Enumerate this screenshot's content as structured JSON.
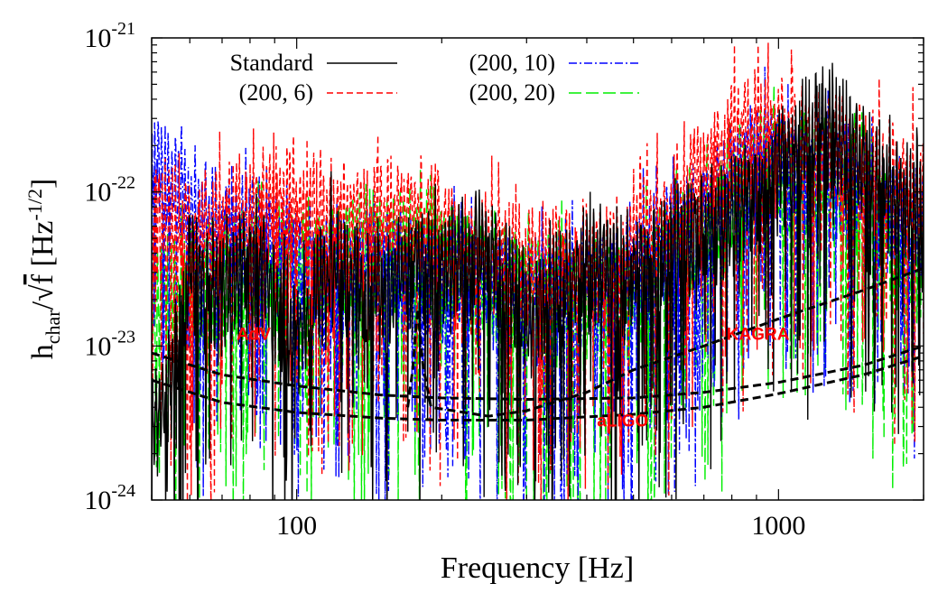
{
  "chart_data": {
    "type": "line",
    "title": "",
    "xlabel": "Frequency [Hz]",
    "ylabel": {
      "h": "h",
      "sub": "char",
      "slash": "/",
      "sqrt": "√",
      "f": "f",
      "unit": " [Hz",
      "sup": "-1/2",
      "close": "]"
    },
    "x_scale": "log",
    "y_scale": "log",
    "xlim": [
      50,
      2000
    ],
    "ylim": [
      1e-24,
      1e-21
    ],
    "x_ticks": [
      {
        "value": 100,
        "label": "100"
      },
      {
        "value": 1000,
        "label": "1000"
      }
    ],
    "y_ticks": [
      {
        "value": 1e-24,
        "base": "10",
        "exp": "-24"
      },
      {
        "value": 1e-23,
        "base": "10",
        "exp": "-23"
      },
      {
        "value": 1e-22,
        "base": "10",
        "exp": "-22"
      },
      {
        "value": 1e-21,
        "base": "10",
        "exp": "-21"
      }
    ],
    "legend_position": "top",
    "series": [
      {
        "name": "Standard",
        "color": "#000000",
        "dash": "solid",
        "points": [
          [
            50,
            2.5e-24
          ],
          [
            55,
            6e-24
          ],
          [
            60,
            3e-23
          ],
          [
            70,
            2e-23
          ],
          [
            80,
            3.5e-23
          ],
          [
            100,
            1.2e-23
          ],
          [
            120,
            3e-23
          ],
          [
            150,
            2e-23
          ],
          [
            180,
            4e-23
          ],
          [
            200,
            3e-23
          ],
          [
            250,
            4e-23
          ],
          [
            300,
            1.5e-23
          ],
          [
            400,
            3e-23
          ],
          [
            500,
            3e-23
          ],
          [
            700,
            5e-23
          ],
          [
            900,
            1e-22
          ],
          [
            1200,
            2.5e-22
          ],
          [
            1500,
            1.6e-22
          ],
          [
            2000,
            6e-23
          ]
        ]
      },
      {
        "name": "(200, 6)",
        "color": "#ff0000",
        "dash": "dashed",
        "points": [
          [
            50,
            6e-23
          ],
          [
            60,
            5e-23
          ],
          [
            80,
            7e-23
          ],
          [
            100,
            9e-23
          ],
          [
            120,
            6e-23
          ],
          [
            150,
            7e-23
          ],
          [
            200,
            5e-23
          ],
          [
            250,
            4e-23
          ],
          [
            300,
            3e-23
          ],
          [
            400,
            3e-23
          ],
          [
            500,
            4e-23
          ],
          [
            700,
            1.2e-22
          ],
          [
            900,
            2.5e-22
          ],
          [
            1200,
            2e-22
          ],
          [
            1500,
            1.5e-22
          ],
          [
            2000,
            8e-23
          ]
        ]
      },
      {
        "name": "(200, 10)",
        "color": "#0000ff",
        "dash": "dash-dot",
        "points": [
          [
            50,
            1.5e-22
          ],
          [
            55,
            1.1e-22
          ],
          [
            60,
            7e-23
          ],
          [
            80,
            5e-23
          ],
          [
            100,
            3.5e-23
          ],
          [
            150,
            3e-23
          ],
          [
            200,
            2.5e-23
          ],
          [
            300,
            2e-23
          ],
          [
            400,
            2e-23
          ],
          [
            500,
            3e-23
          ],
          [
            700,
            6e-23
          ],
          [
            900,
            1.8e-22
          ],
          [
            1200,
            1.3e-22
          ],
          [
            1500,
            1e-22
          ],
          [
            2000,
            5e-23
          ]
        ]
      },
      {
        "name": "(200, 20)",
        "color": "#00ee00",
        "dash": "long-dash",
        "points": [
          [
            50,
            2e-23
          ],
          [
            60,
            2e-23
          ],
          [
            80,
            3e-23
          ],
          [
            100,
            3e-23
          ],
          [
            150,
            4e-23
          ],
          [
            200,
            3e-23
          ],
          [
            300,
            2e-23
          ],
          [
            400,
            1.8e-23
          ],
          [
            500,
            2e-23
          ],
          [
            700,
            5e-23
          ],
          [
            900,
            1.2e-22
          ],
          [
            1200,
            1.2e-22
          ],
          [
            1500,
            8e-23
          ],
          [
            2000,
            3e-23
          ]
        ]
      }
    ],
    "sensitivity_curves": [
      {
        "name": "AdV",
        "color": "#000000",
        "dash": "dashed",
        "points": [
          [
            50,
            9e-24
          ],
          [
            70,
            6.5e-24
          ],
          [
            100,
            5.5e-24
          ],
          [
            150,
            4.8e-24
          ],
          [
            200,
            4.6e-24
          ],
          [
            300,
            4.5e-24
          ],
          [
            500,
            4.6e-24
          ],
          [
            700,
            5e-24
          ],
          [
            1000,
            5.8e-24
          ],
          [
            1500,
            7.5e-24
          ],
          [
            2000,
            1e-23
          ]
        ]
      },
      {
        "name": "aLIGO",
        "color": "#000000",
        "dash": "dashed",
        "points": [
          [
            50,
            6e-24
          ],
          [
            70,
            4.3e-24
          ],
          [
            100,
            3.7e-24
          ],
          [
            150,
            3.4e-24
          ],
          [
            200,
            3.3e-24
          ],
          [
            300,
            3.3e-24
          ],
          [
            500,
            3.6e-24
          ],
          [
            700,
            4e-24
          ],
          [
            1000,
            4.9e-24
          ],
          [
            1500,
            6.5e-24
          ],
          [
            2000,
            8.6e-24
          ]
        ]
      },
      {
        "name": "KAGRA",
        "color": "#000000",
        "dash": "dashed",
        "points": [
          [
            170,
            4e-24
          ],
          [
            175,
            8e-24
          ],
          [
            178,
            2e-23
          ],
          [
            182,
            8e-24
          ],
          [
            190,
            4e-24
          ],
          [
            250,
            3.5e-24
          ],
          [
            300,
            3.8e-24
          ],
          [
            400,
            5e-24
          ],
          [
            500,
            7e-24
          ],
          [
            700,
            1e-23
          ],
          [
            1000,
            1.5e-23
          ],
          [
            1500,
            2.3e-23
          ],
          [
            2000,
            3.2e-23
          ]
        ]
      }
    ],
    "annotations": [
      {
        "text": "AdV",
        "color": "#ff0000",
        "at": [
          75,
          1.1e-23
        ]
      },
      {
        "text": "aLIGO",
        "color": "#ff0000",
        "at": [
          420,
          3e-24
        ]
      },
      {
        "text": "KAGRA",
        "color": "#ff0000",
        "at": [
          780,
          1.1e-23
        ]
      }
    ]
  }
}
